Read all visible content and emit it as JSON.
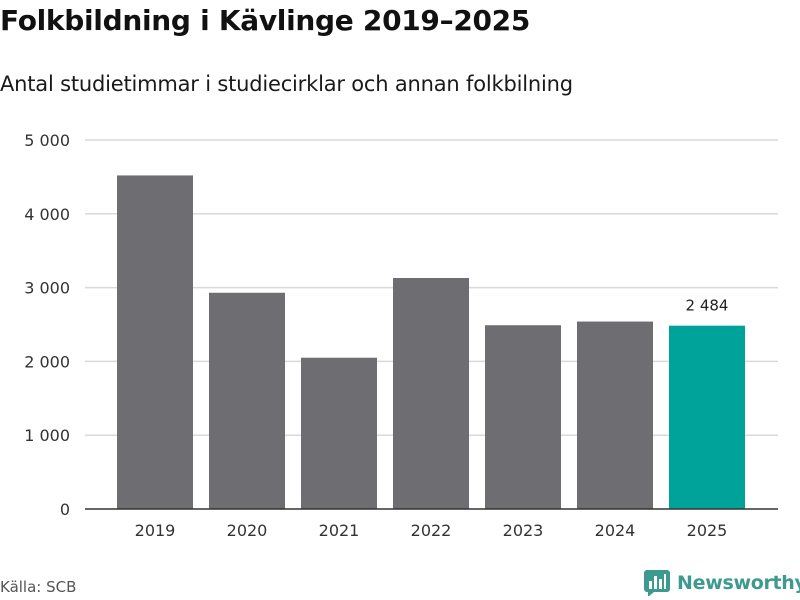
{
  "header": {
    "title": "Folkbildning i Kävlinge 2019–2025",
    "subtitle": "Antal studietimmar i studiecirklar och annan folkbilning"
  },
  "footer": {
    "source": "Källa: SCB",
    "brand": "Newsworthy",
    "brand_icon": "bar-chart-logo-icon"
  },
  "colors": {
    "bar": "#6e6d72",
    "highlight": "#00a39a",
    "grid": "#d9d9d9",
    "brand": "#3d9a8f"
  },
  "chart_data": {
    "type": "bar",
    "title": "Folkbildning i Kävlinge 2019–2025",
    "subtitle": "Antal studietimmar i studiecirklar och annan folkbilning",
    "categories": [
      "2019",
      "2020",
      "2021",
      "2022",
      "2023",
      "2024",
      "2025"
    ],
    "values": [
      4520,
      2930,
      2050,
      3130,
      2490,
      2540,
      2484
    ],
    "highlight_index": 6,
    "data_labels": [
      {
        "index": 6,
        "text": "2 484"
      }
    ],
    "y_ticks": [
      0,
      1000,
      2000,
      3000,
      4000,
      5000
    ],
    "y_tick_labels": [
      "0",
      "1 000",
      "2 000",
      "3 000",
      "4 000",
      "5 000"
    ],
    "ylim": [
      0,
      5000
    ],
    "xlabel": "",
    "ylabel": "",
    "grid": true
  }
}
